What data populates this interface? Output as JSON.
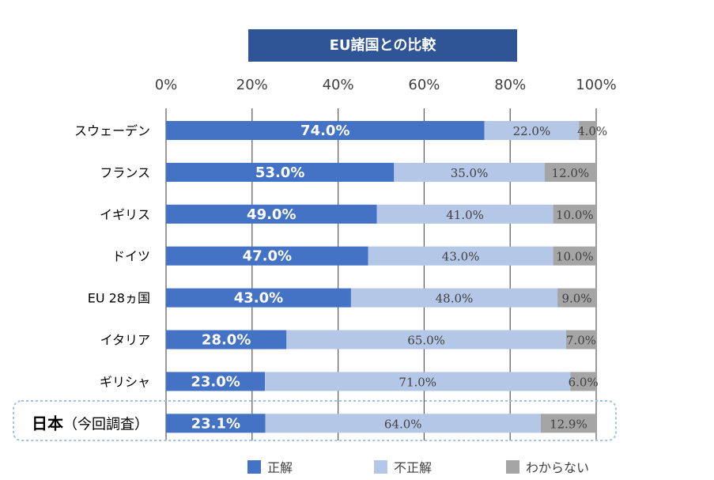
{
  "chart_data": {
    "type": "bar",
    "orientation": "horizontal",
    "stacked": true,
    "title": "EU諸国との比較",
    "x_ticks": [
      "0%",
      "20%",
      "40%",
      "60%",
      "80%",
      "100%"
    ],
    "xlim": [
      0,
      100
    ],
    "categories": [
      "スウェーデン",
      "フランス",
      "イギリス",
      "ドイツ",
      "EU 28ヵ国",
      "イタリア",
      "ギリシャ",
      "日本（今回調査）"
    ],
    "highlight_category": {
      "main": "日本",
      "suffix": "（今回調査）"
    },
    "series": [
      {
        "name": "正解",
        "color": "#4472c4",
        "values": [
          74.0,
          53.0,
          49.0,
          47.0,
          43.0,
          28.0,
          23.0,
          23.1
        ],
        "labels": [
          "74.0%",
          "53.0%",
          "49.0%",
          "47.0%",
          "43.0%",
          "28.0%",
          "23.0%",
          "23.1%"
        ]
      },
      {
        "name": "不正解",
        "color": "#b4c7e7",
        "values": [
          22.0,
          35.0,
          41.0,
          43.0,
          48.0,
          65.0,
          71.0,
          64.0
        ],
        "labels": [
          "22.0%",
          "35.0%",
          "41.0%",
          "43.0%",
          "48.0%",
          "65.0%",
          "71.0%",
          "64.0%"
        ]
      },
      {
        "name": "わからない",
        "color": "#a5a5a5",
        "values": [
          4.0,
          12.0,
          10.0,
          10.0,
          9.0,
          7.0,
          6.0,
          12.9
        ],
        "labels": [
          "4.0%",
          "12.0%",
          "10.0%",
          "10.0%",
          "9.0%",
          "7.0%",
          "6.0%",
          "12.9%"
        ]
      }
    ],
    "grid": true,
    "legend": "bottom"
  }
}
